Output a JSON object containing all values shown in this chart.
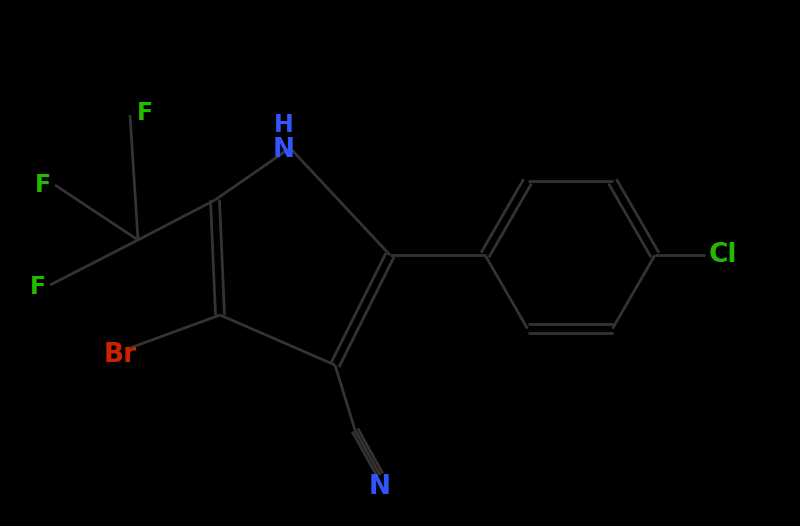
{
  "background_color": "#000000",
  "bond_color": "#1a1a1a",
  "bond_color2": "#333333",
  "bond_width": 2.2,
  "figsize": [
    8.0,
    5.26
  ],
  "dpi": 100,
  "colors": {
    "N": "#3355ff",
    "Br": "#cc2200",
    "Cl": "#22bb00",
    "F": "#22bb00",
    "C": "#1a1a1a"
  },
  "label_fontsize": 19,
  "label_fontsize_small": 17
}
